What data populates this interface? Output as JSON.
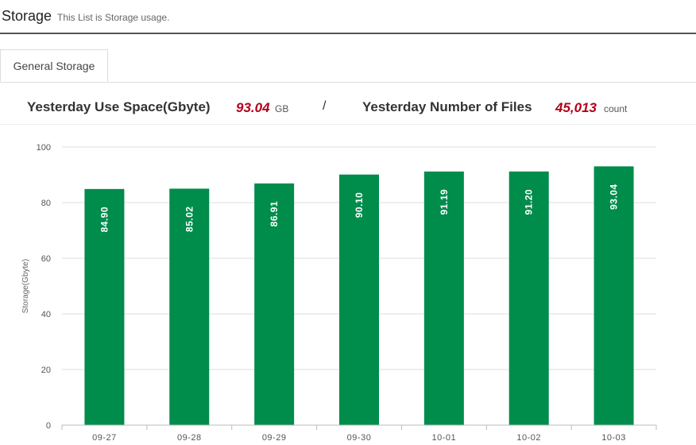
{
  "header": {
    "title": "Storage",
    "subtitle": "This List is Storage usage."
  },
  "tabs": [
    {
      "label": "General Storage",
      "active": true
    }
  ],
  "summary": {
    "use_space_label": "Yesterday Use Space(Gbyte)",
    "use_space_value": "93.04",
    "use_space_unit": "GB",
    "separator": "/",
    "files_label": "Yesterday Number of Files",
    "files_value": "45,013",
    "files_unit": "count"
  },
  "colors": {
    "bar": "#008c4b",
    "value_highlight": "#b3001b"
  },
  "chart_data": {
    "type": "bar",
    "categories": [
      "09-27",
      "09-28",
      "09-29",
      "09-30",
      "10-01",
      "10-02",
      "10-03"
    ],
    "values": [
      84.9,
      85.02,
      86.91,
      90.1,
      91.19,
      91.2,
      93.04
    ],
    "data_labels": [
      "84.90",
      "85.02",
      "86.91",
      "90.10",
      "91.19",
      "91.20",
      "93.04"
    ],
    "ylabel": "Storage(Gbyte)",
    "ylim": [
      0,
      100
    ],
    "yticks": [
      0,
      20,
      40,
      60,
      80,
      100
    ],
    "grid": true,
    "legend": "none"
  }
}
